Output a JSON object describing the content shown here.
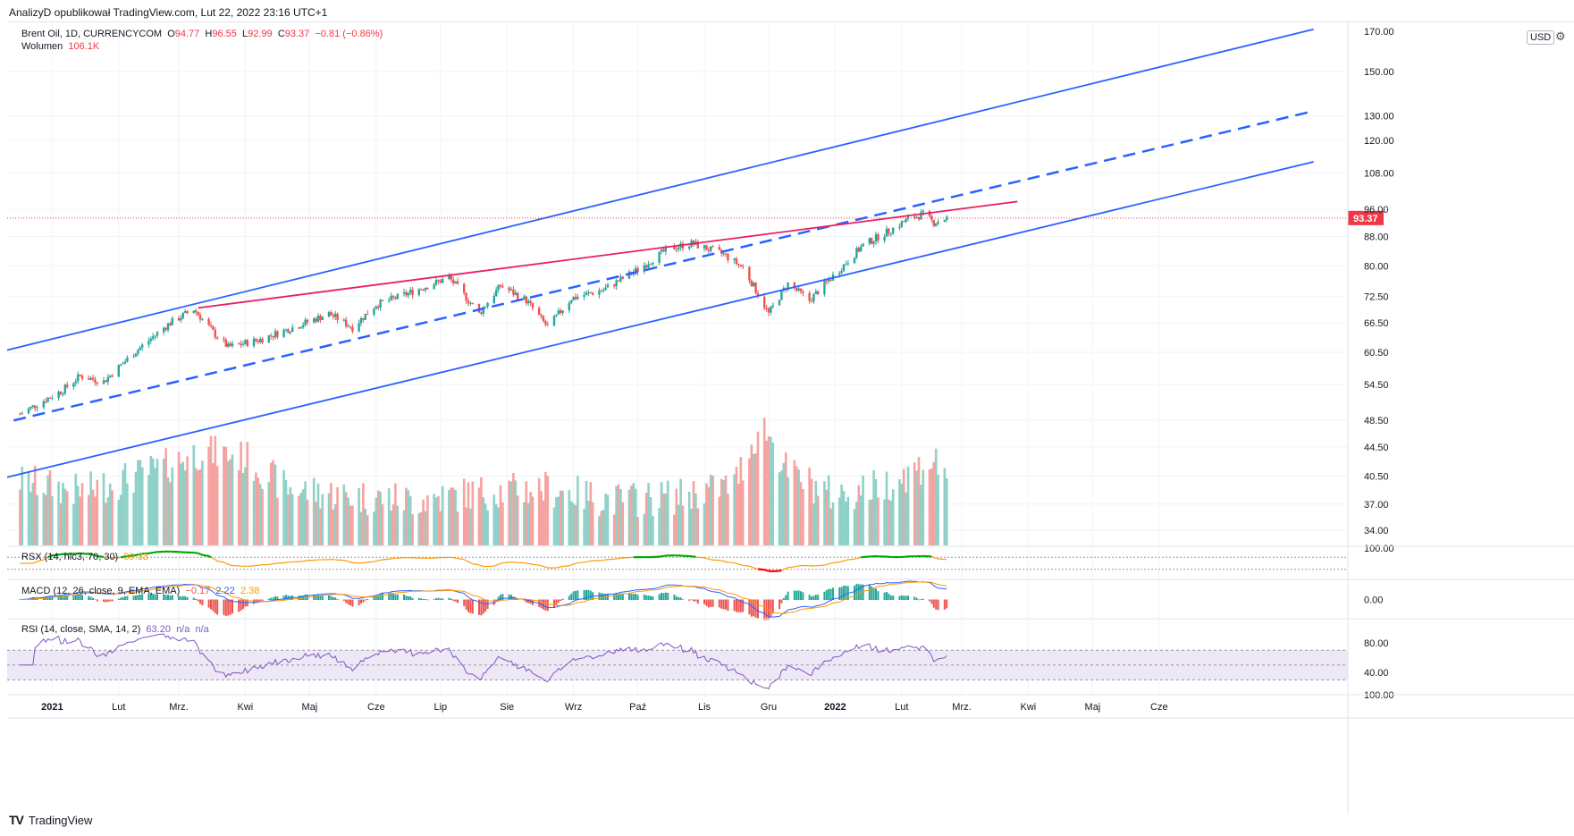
{
  "publisher_line": "AnalizyD opublikował TradingView.com, Lut 22, 2022 23:16 UTC+1",
  "legend": {
    "symbol": "Brent Oil, 1D, CURRENCYCOM",
    "o_label": "O",
    "o": "94.77",
    "h_label": "H",
    "h": "96.55",
    "l_label": "L",
    "l": "92.99",
    "c_label": "C",
    "c": "93.37",
    "change": "−0.81 (−0.86%)",
    "volume_label": "Wolumen",
    "volume": "106.1K"
  },
  "rsx_legend": {
    "label": "RSX (14, hlc3, 70, 30)",
    "value": "59.33"
  },
  "macd_legend": {
    "label": "MACD (12, 26, close, 9, EMA, EMA)",
    "hist": "−0.17",
    "macd": "2.22",
    "signal": "2.38"
  },
  "rsi_legend": {
    "label": "RSI (14, close, SMA, 14, 2)",
    "value": "63.20",
    "na1": "n/a",
    "na2": "n/a"
  },
  "currency_button": "USD",
  "brand": {
    "logo": "TV",
    "name": "TradingView"
  },
  "colors": {
    "up": "#26a69a",
    "down": "#ef5350",
    "vol_up": "#8fd1c8",
    "vol_down": "#f5a3a0",
    "channel": "#2962ff",
    "resistance": "#e91e63",
    "rsx_up": "#00a800",
    "rsx_down": "#ff0000",
    "rsx_mid": "#ff9800",
    "macd_line": "#2962ff",
    "signal_line": "#ff9800",
    "rsi_line": "#7e57c2",
    "rsi_band": "#ede7f6",
    "price_label": "#f23645"
  },
  "chart_data": {
    "type": "candlestick",
    "scale": "log",
    "y_ticks": [
      "150.00",
      "130.00",
      "120.00",
      "108.00",
      "96.00",
      "88.00",
      "80.00",
      "72.50",
      "66.50",
      "60.50",
      "54.50",
      "48.50",
      "44.50",
      "40.50",
      "37.00",
      "34.00"
    ],
    "top_tick": "170.00",
    "last_price": "93.37",
    "x_ticks": [
      "2021",
      "Lut",
      "Mrz.",
      "Kwi",
      "Maj",
      "Cze",
      "Lip",
      "Sie",
      "Wrz",
      "Paź",
      "Lis",
      "Gru",
      "2022",
      "Lut",
      "Mrz.",
      "Kwi",
      "Maj",
      "Cze"
    ],
    "price_anchors": [
      [
        "2020-12-17",
        49.5
      ],
      [
        "2021-01-06",
        53.5
      ],
      [
        "2021-01-14",
        56.0
      ],
      [
        "2021-01-25",
        55.0
      ],
      [
        "2021-02-10",
        61.0
      ],
      [
        "2021-02-25",
        66.5
      ],
      [
        "2021-03-08",
        69.5
      ],
      [
        "2021-03-18",
        64.0
      ],
      [
        "2021-03-24",
        61.5
      ],
      [
        "2021-04-08",
        63.0
      ],
      [
        "2021-04-26",
        66.0
      ],
      [
        "2021-05-10",
        68.5
      ],
      [
        "2021-05-21",
        65.5
      ],
      [
        "2021-06-01",
        70.5
      ],
      [
        "2021-06-15",
        73.0
      ],
      [
        "2021-07-05",
        77.0
      ],
      [
        "2021-07-19",
        68.5
      ],
      [
        "2021-07-29",
        75.0
      ],
      [
        "2021-08-10",
        71.5
      ],
      [
        "2021-08-20",
        65.5
      ],
      [
        "2021-08-31",
        72.0
      ],
      [
        "2021-09-15",
        74.0
      ],
      [
        "2021-10-01",
        79.0
      ],
      [
        "2021-10-15",
        84.5
      ],
      [
        "2021-10-26",
        86.0
      ],
      [
        "2021-11-10",
        83.0
      ],
      [
        "2021-11-19",
        79.5
      ],
      [
        "2021-11-26",
        73.0
      ],
      [
        "2021-12-01",
        68.5
      ],
      [
        "2021-12-10",
        75.5
      ],
      [
        "2021-12-20",
        71.5
      ],
      [
        "2022-01-03",
        79.0
      ],
      [
        "2022-01-14",
        85.5
      ],
      [
        "2022-01-26",
        89.5
      ],
      [
        "2022-02-04",
        93.0
      ],
      [
        "2022-02-11",
        94.5
      ],
      [
        "2022-02-16",
        92.0
      ],
      [
        "2022-02-22",
        93.37
      ]
    ],
    "volume_anchors": [
      [
        "2020-12-17",
        40.0
      ],
      [
        "2021-01-15",
        38.5
      ],
      [
        "2021-02-20",
        41.5
      ],
      [
        "2021-03-12",
        44.0
      ],
      [
        "2021-04-01",
        43.0
      ],
      [
        "2021-04-20",
        39.0
      ],
      [
        "2021-05-20",
        38.0
      ],
      [
        "2021-06-20",
        37.5
      ],
      [
        "2021-07-20",
        38.5
      ],
      [
        "2021-08-20",
        39.0
      ],
      [
        "2021-09-20",
        37.5
      ],
      [
        "2021-10-20",
        38.0
      ],
      [
        "2021-11-15",
        39.5
      ],
      [
        "2021-11-28",
        48.0
      ],
      [
        "2021-12-10",
        41.0
      ],
      [
        "2022-01-01",
        38.0
      ],
      [
        "2022-01-25",
        39.5
      ],
      [
        "2022-02-15",
        42.5
      ],
      [
        "2022-02-22",
        41.5
      ]
    ],
    "trendlines": [
      {
        "from": [
          "2020-12-10",
          60.8
        ],
        "to": [
          "2022-08-12",
          172.0
        ],
        "style": "solid",
        "color": "channel"
      },
      {
        "from": [
          "2020-12-14",
          48.5
        ],
        "to": [
          "2022-08-12",
          132.0
        ],
        "style": "dashed",
        "color": "channel"
      },
      {
        "from": [
          "2020-12-10",
          40.3
        ],
        "to": [
          "2022-08-12",
          112.0
        ],
        "style": "solid",
        "color": "channel"
      },
      {
        "from": [
          "2021-03-10",
          69.8
        ],
        "to": [
          "2022-03-27",
          98.5
        ],
        "style": "solid",
        "color": "resistance"
      }
    ]
  }
}
